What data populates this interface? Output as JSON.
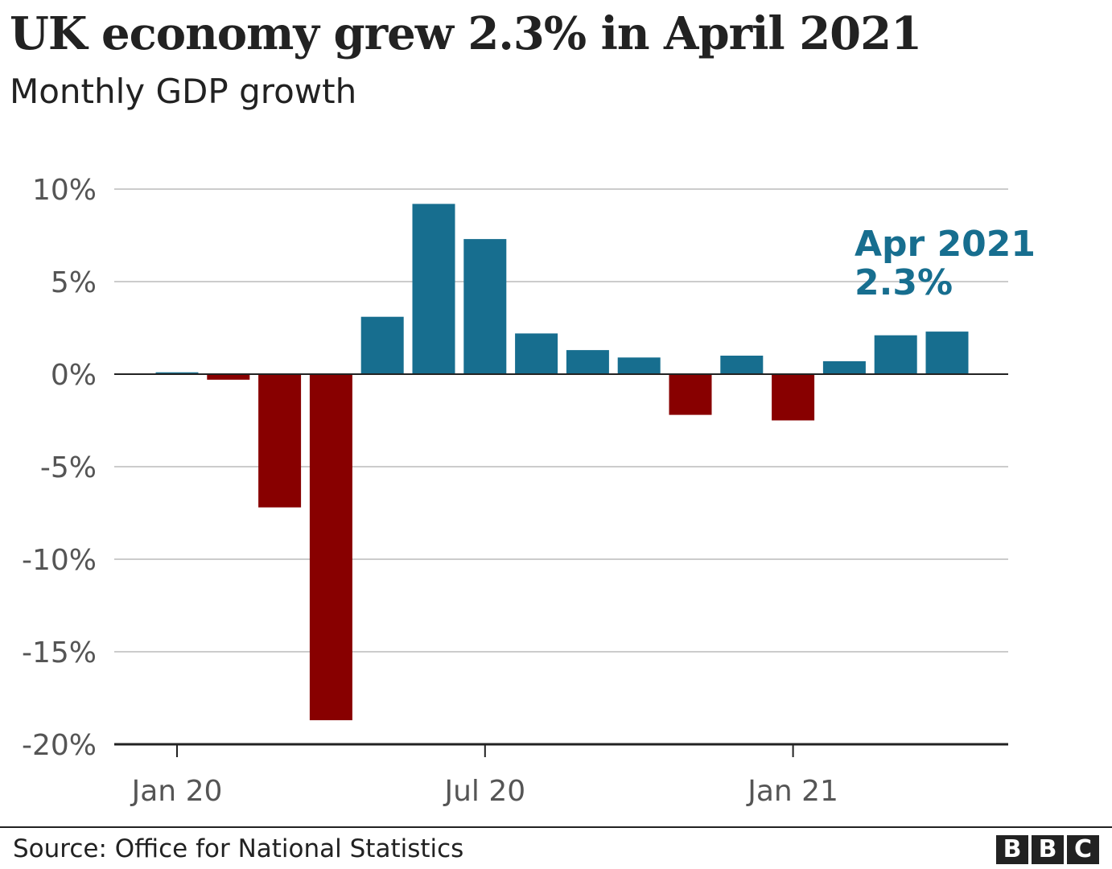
{
  "chart_data": {
    "type": "bar",
    "title": "UK economy grew 2.3% in April 2021",
    "subtitle": "Monthly GDP growth",
    "ylabel": "",
    "xlabel": "",
    "ylim": [
      -20,
      10
    ],
    "y_ticks": [
      {
        "value": 10,
        "label": "10%"
      },
      {
        "value": 5,
        "label": "5%"
      },
      {
        "value": 0,
        "label": "0%"
      },
      {
        "value": -5,
        "label": "-5%"
      },
      {
        "value": -10,
        "label": "-10%"
      },
      {
        "value": -15,
        "label": "-15%"
      },
      {
        "value": -20,
        "label": "-20%"
      }
    ],
    "x_ticks": [
      {
        "category": "Jan 2020",
        "label": "Jan 20"
      },
      {
        "category": "Jul 2020",
        "label": "Jul 20"
      },
      {
        "category": "Jan 2021",
        "label": "Jan 21"
      }
    ],
    "categories": [
      "Jan 2020",
      "Feb 2020",
      "Mar 2020",
      "Apr 2020",
      "May 2020",
      "Jun 2020",
      "Jul 2020",
      "Aug 2020",
      "Sep 2020",
      "Oct 2020",
      "Nov 2020",
      "Dec 2020",
      "Jan 2021",
      "Feb 2021",
      "Mar 2021",
      "Apr 2021"
    ],
    "values": [
      0.1,
      -0.3,
      -7.2,
      -18.7,
      3.1,
      9.2,
      7.3,
      2.2,
      1.3,
      0.9,
      -2.2,
      1.0,
      -2.5,
      0.7,
      2.1,
      2.3
    ],
    "colors": {
      "positive": "#176e8f",
      "negative": "#880000",
      "gridline": "#cccccc",
      "axis": "#222222"
    },
    "grid": true,
    "annotation": {
      "category": "Apr 2021",
      "line1": "Apr 2021",
      "line2": "2.3%",
      "color": "#176e8f"
    }
  },
  "footer": {
    "source": "Source: Office for National Statistics",
    "logo_letters": [
      "B",
      "B",
      "C"
    ]
  }
}
